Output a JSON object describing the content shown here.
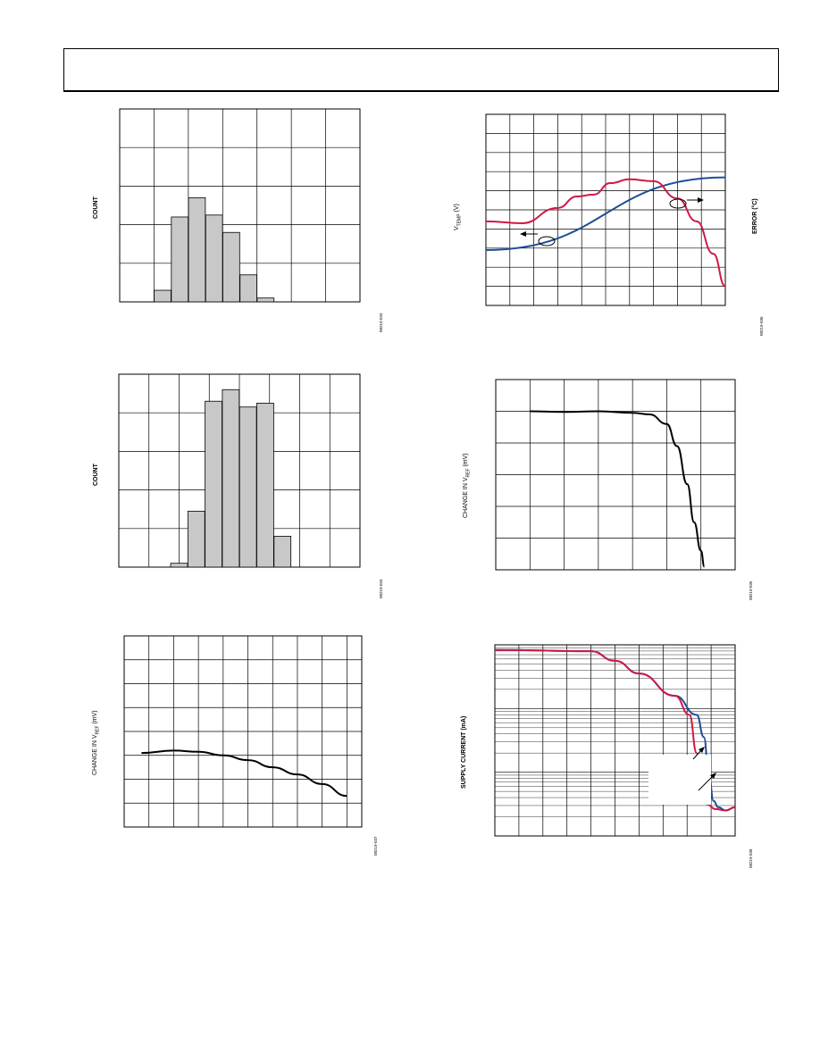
{
  "page": {
    "header_text": ""
  },
  "charts": [
    {
      "id": "count-histogram-1",
      "ylabel": "COUNT",
      "figure_id": "08219-033"
    },
    {
      "id": "vtemp-error",
      "ylabel_main": "V",
      "ylabel_sub": "TEMP",
      "ylabel_unit": " (V)",
      "y2label": "ERROR (°C)",
      "figure_id": "08219-036"
    },
    {
      "id": "count-histogram-2",
      "ylabel": "COUNT",
      "figure_id": "08219-034"
    },
    {
      "id": "vref-change-1",
      "ylabel_main": "CHANGE IN V",
      "ylabel_sub": "REF",
      "ylabel_unit": " (mV)",
      "figure_id": "08219-035"
    },
    {
      "id": "vref-change-2",
      "ylabel_main": "CHANGE IN V",
      "ylabel_sub": "REF",
      "ylabel_unit": " (mV)",
      "figure_id": "08219-037"
    },
    {
      "id": "supply-current",
      "ylabel": "SUPPLY CURRENT (mA)",
      "figure_id": "08219-038"
    }
  ],
  "chart_data": [
    {
      "type": "bar",
      "x": [
        2,
        3,
        4,
        5,
        6,
        7,
        8
      ],
      "values": [
        0.06,
        0.44,
        0.54,
        0.45,
        0.36,
        0.14,
        0.02
      ],
      "xlim": [
        0,
        14
      ],
      "ylim": [
        0,
        1
      ],
      "grid": true,
      "colors": {
        "bar": "#c8c8c8",
        "edge": "#000000"
      }
    },
    {
      "type": "line",
      "xlim": [
        0,
        10
      ],
      "ylim": [
        0,
        10
      ],
      "grid": true,
      "series": [
        {
          "color": "#1f4e96",
          "x": [
            0,
            10
          ],
          "y": [
            2.9,
            6.7
          ]
        },
        {
          "color": "#d01845",
          "x": [
            0,
            1.5,
            3,
            3.8,
            4.5,
            5.2,
            6,
            7,
            8,
            8.8,
            9.5,
            10
          ],
          "y": [
            4.4,
            4.3,
            5.1,
            5.7,
            5.8,
            6.4,
            6.6,
            6.5,
            5.6,
            4.4,
            2.7,
            1.0
          ]
        }
      ]
    },
    {
      "type": "bar",
      "x": [
        3,
        4,
        5,
        6,
        7,
        8,
        9,
        10
      ],
      "values": [
        0.02,
        0.29,
        0.86,
        0.92,
        0.83,
        0.85,
        0.16,
        0.0
      ],
      "xlim": [
        0,
        14
      ],
      "ylim": [
        0,
        1
      ],
      "grid": true,
      "colors": {
        "bar": "#c8c8c8",
        "edge": "#000000"
      }
    },
    {
      "type": "line",
      "xlim": [
        0,
        7
      ],
      "ylim": [
        0,
        6
      ],
      "grid": true,
      "series": [
        {
          "color": "#000000",
          "x": [
            1,
            2,
            3,
            4,
            4.5,
            5,
            5.3,
            5.6,
            5.8,
            6.0,
            6.1
          ],
          "y": [
            5.0,
            4.98,
            5.0,
            4.95,
            4.9,
            4.6,
            3.9,
            2.7,
            1.5,
            0.6,
            0.1
          ]
        }
      ]
    },
    {
      "type": "line",
      "xlim": [
        0,
        9.6
      ],
      "ylim": [
        0,
        8
      ],
      "grid": true,
      "series": [
        {
          "color": "#000000",
          "x": [
            0.7,
            2,
            3,
            4,
            5,
            6,
            7,
            8,
            9
          ],
          "y": [
            3.1,
            3.2,
            3.15,
            3.0,
            2.8,
            2.5,
            2.2,
            1.8,
            1.3
          ]
        }
      ]
    },
    {
      "type": "line",
      "xlim": [
        0,
        10
      ],
      "ylim": [
        0,
        3
      ],
      "grid": true,
      "series": [
        {
          "color": "#1f4e96",
          "x": [
            0,
            4,
            5,
            6,
            7.5,
            8.4,
            8.7,
            8.9,
            9.1,
            9.3,
            9.6,
            10
          ],
          "y": [
            2.92,
            2.9,
            2.75,
            2.55,
            2.2,
            1.9,
            1.55,
            1.0,
            0.55,
            0.45,
            0.4,
            0.45
          ]
        },
        {
          "color": "#d01845",
          "x": [
            0,
            4,
            5,
            6,
            7.5,
            8.1,
            8.4,
            8.6,
            8.8,
            9.2,
            9.6,
            10
          ],
          "y": [
            2.92,
            2.9,
            2.75,
            2.55,
            2.2,
            1.9,
            1.3,
            0.75,
            0.5,
            0.42,
            0.4,
            0.45
          ]
        }
      ]
    }
  ]
}
